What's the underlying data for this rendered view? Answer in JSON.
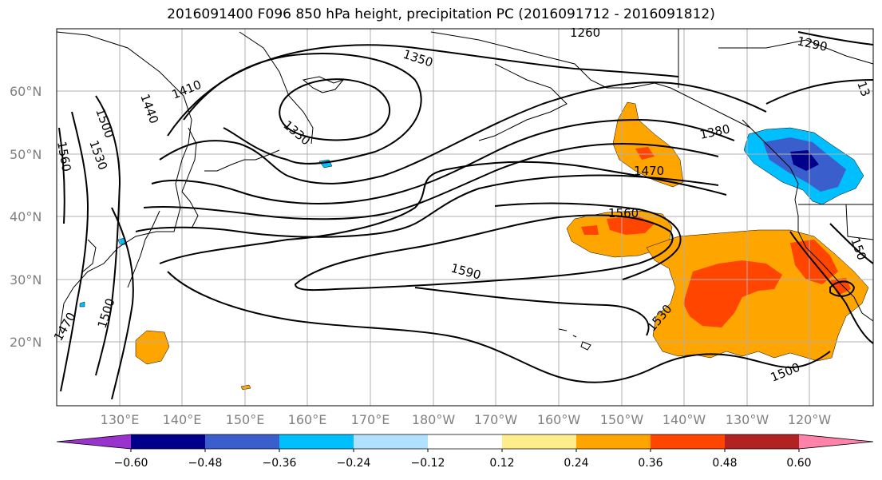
{
  "title": "2016091400 F096 850 hPa height, precipitation PC (2016091712 - 2016091812)",
  "lat_labels": [
    "60°N",
    "50°N",
    "40°N",
    "30°N",
    "20°N"
  ],
  "lon_labels": [
    "130°E",
    "140°E",
    "150°E",
    "160°E",
    "170°E",
    "180°W",
    "170°W",
    "160°W",
    "150°W",
    "140°W",
    "130°W",
    "120°W"
  ],
  "contour_labels": [
    "1260",
    "1290",
    "1350",
    "1410",
    "1440",
    "1500",
    "1530",
    "1560",
    "1380",
    "1470",
    "1330",
    "1560",
    "1590",
    "1530",
    "1500",
    "1500",
    "1470",
    "150",
    "13"
  ],
  "colorbar": {
    "ticks": [
      "−0.60",
      "−0.48",
      "−0.36",
      "−0.24",
      "−0.12",
      "0.12",
      "0.24",
      "0.36",
      "0.48",
      "0.60"
    ],
    "colors": [
      "#9a32cd",
      "#00008b",
      "#3a5fcd",
      "#00bfff",
      "#b0e2ff",
      "#ffffff",
      "#ffec8b",
      "#ffa500",
      "#ff4500",
      "#b22222",
      "#ff82ab"
    ]
  }
}
